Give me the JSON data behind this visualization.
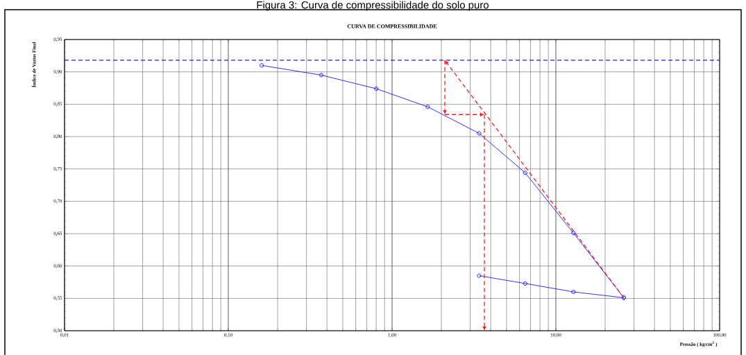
{
  "chart_data": {
    "type": "line",
    "title": "Figura 3: Curva de compressibilidade do solo puro",
    "subtitle": "CURVA DE COMPRESSIBILIDADE",
    "xlabel": "Pressão ( kg/cm$^{2}$ )",
    "ylabel": "Índice de Vazios Final",
    "log": "x",
    "grid": true,
    "marker": "circle",
    "line_style": "solid",
    "xlim": [
      0.01,
      100
    ],
    "ylim": [
      0.5,
      0.95
    ],
    "xticks": [
      {
        "value": 0.01,
        "label": "0,01"
      },
      {
        "value": 0.1,
        "label": "0,10"
      },
      {
        "value": 1,
        "label": "1,00"
      },
      {
        "value": 10,
        "label": "10,00"
      },
      {
        "value": 100,
        "label": "100,00"
      }
    ],
    "yticks": [
      {
        "value": 0.5,
        "label": "0,50"
      },
      {
        "value": 0.55,
        "label": "0,55"
      },
      {
        "value": 0.6,
        "label": "0,60"
      },
      {
        "value": 0.65,
        "label": "0,65"
      },
      {
        "value": 0.7,
        "label": "0,70"
      },
      {
        "value": 0.75,
        "label": "0,75"
      },
      {
        "value": 0.8,
        "label": "0,80"
      },
      {
        "value": 0.85,
        "label": "0,85"
      },
      {
        "value": 0.9,
        "label": "0,90"
      },
      {
        "value": 0.95,
        "label": "0,95"
      }
    ],
    "ref_lines": [
      {
        "axis": "y",
        "value": 0.918,
        "color": "#1a1aff",
        "line_style": "dashed"
      }
    ],
    "series": [
      {
        "color": "#1a1aff",
        "x": [
          0.16,
          0.37,
          0.8,
          1.65,
          3.4,
          6.5,
          12.8,
          26
        ],
        "values": [
          0.91,
          0.895,
          0.874,
          0.846,
          0.805,
          0.744,
          0.651,
          0.551
        ]
      },
      {
        "color": "#1a1aff",
        "x": [
          3.4,
          6.5,
          12.8,
          26
        ],
        "values": [
          0.585,
          0.573,
          0.56,
          0.551
        ]
      }
    ]
  }
}
